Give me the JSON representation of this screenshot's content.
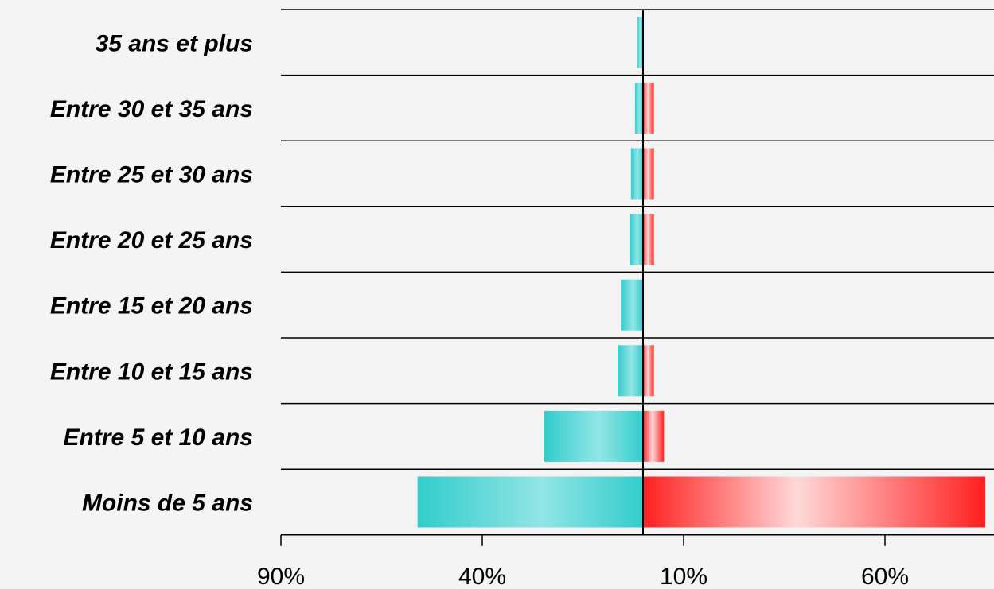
{
  "chart_data": {
    "type": "bar",
    "orientation": "horizontal-diverging",
    "categories": [
      "35 ans et plus",
      "Entre 30 et 35 ans",
      "Entre 25 et 30 ans",
      "Entre 20 et 25 ans",
      "Entre 15 et 20 ans",
      "Entre 10 et 15 ans",
      "Entre 5 et 10 ans",
      "Moins de 5 ans"
    ],
    "series": [
      {
        "side": "left",
        "color": "#33cccc",
        "values": [
          1.5,
          2,
          3,
          3.2,
          5.5,
          6.3,
          24.5,
          56
        ]
      },
      {
        "side": "right",
        "color": "#ff2222",
        "values": [
          0,
          2.7,
          2.7,
          2.7,
          0,
          2.7,
          5.2,
          85
        ]
      }
    ],
    "x_ticks": [
      "90%",
      "40%",
      "10%",
      "60%"
    ],
    "tick_scale_percent_per_tick": 50,
    "xlabel": "",
    "ylabel": "",
    "title": "",
    "grid": "horizontal separators"
  }
}
